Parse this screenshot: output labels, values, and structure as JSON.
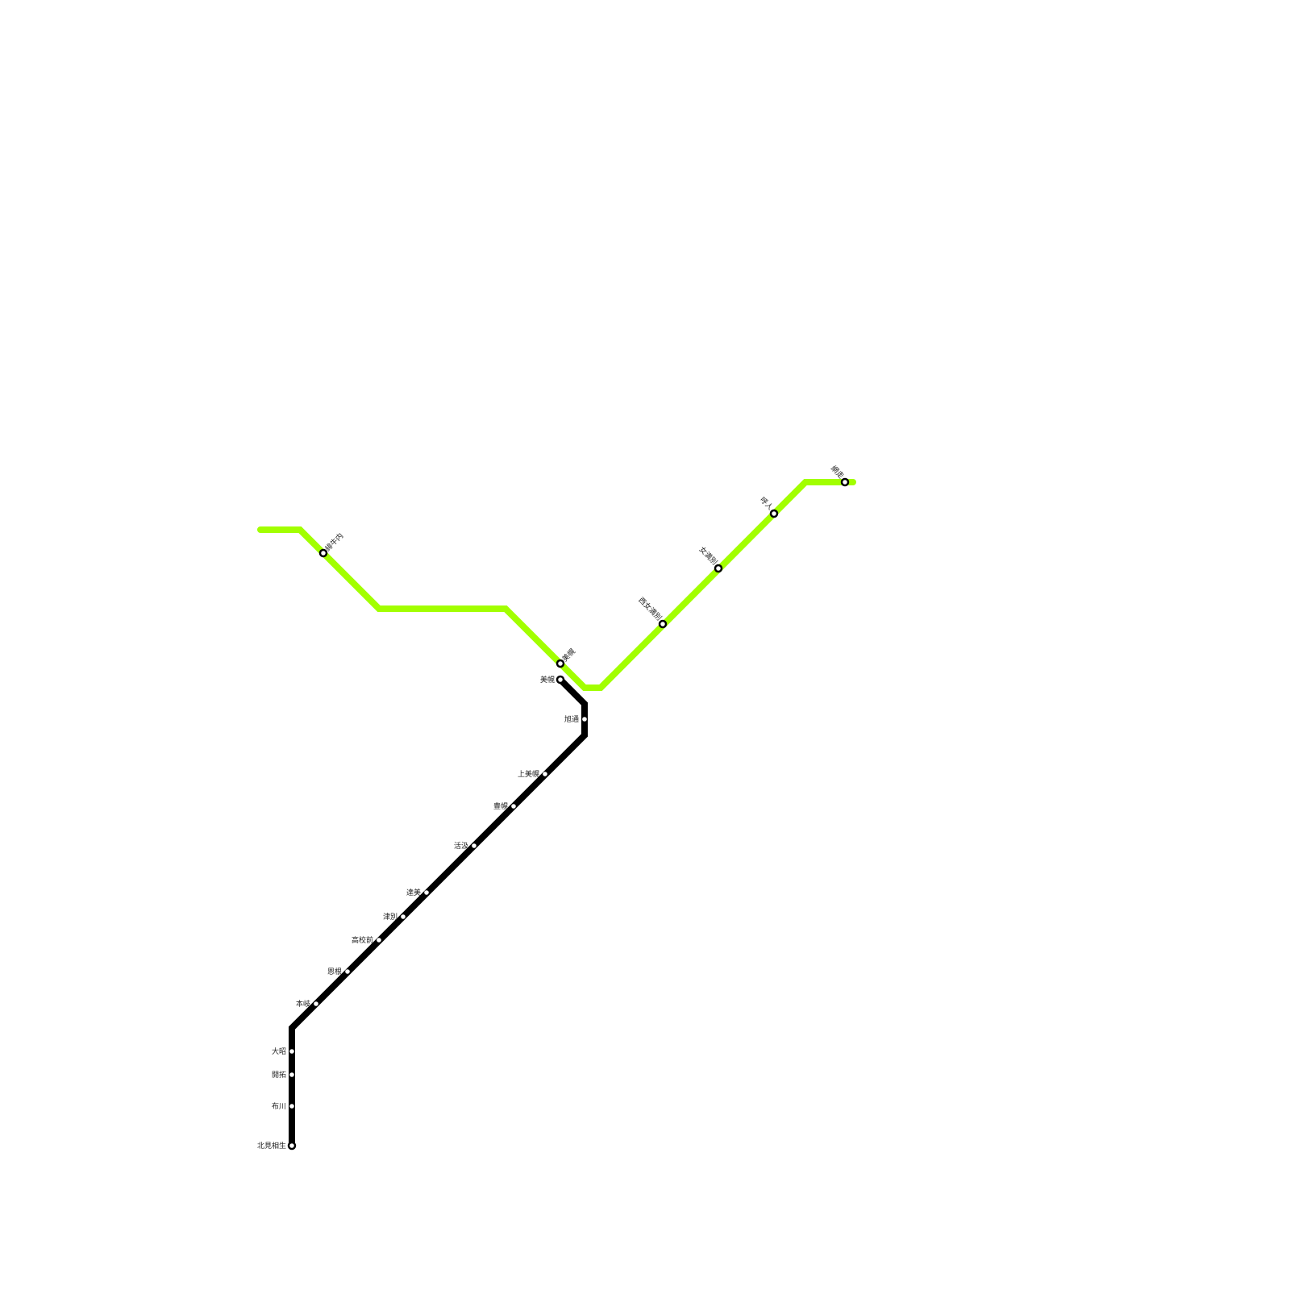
{
  "lines": [
    {
      "id": "green",
      "color": "#a2ff00",
      "stations": [
        {
          "name": "緋牛内",
          "style": "ring"
        },
        {
          "name": "美幌",
          "style": "ring"
        },
        {
          "name": "西女満別",
          "style": "ring"
        },
        {
          "name": "女満別",
          "style": "ring"
        },
        {
          "name": "呼人",
          "style": "ring"
        },
        {
          "name": "網走",
          "style": "ring"
        }
      ]
    },
    {
      "id": "black",
      "color": "#000000",
      "stations": [
        {
          "name": "美幌",
          "style": "ring"
        },
        {
          "name": "旭通",
          "style": "dot"
        },
        {
          "name": "上美幌",
          "style": "dot"
        },
        {
          "name": "豊幌",
          "style": "dot"
        },
        {
          "name": "活汲",
          "style": "dot"
        },
        {
          "name": "達美",
          "style": "dot"
        },
        {
          "name": "津別",
          "style": "dot"
        },
        {
          "name": "高校前",
          "style": "dot"
        },
        {
          "name": "恩根",
          "style": "dot"
        },
        {
          "name": "本岐",
          "style": "dot"
        },
        {
          "name": "大昭",
          "style": "dot"
        },
        {
          "name": "開拓",
          "style": "dot"
        },
        {
          "name": "布川",
          "style": "dot"
        },
        {
          "name": "北見相生",
          "style": "ring"
        }
      ]
    }
  ]
}
